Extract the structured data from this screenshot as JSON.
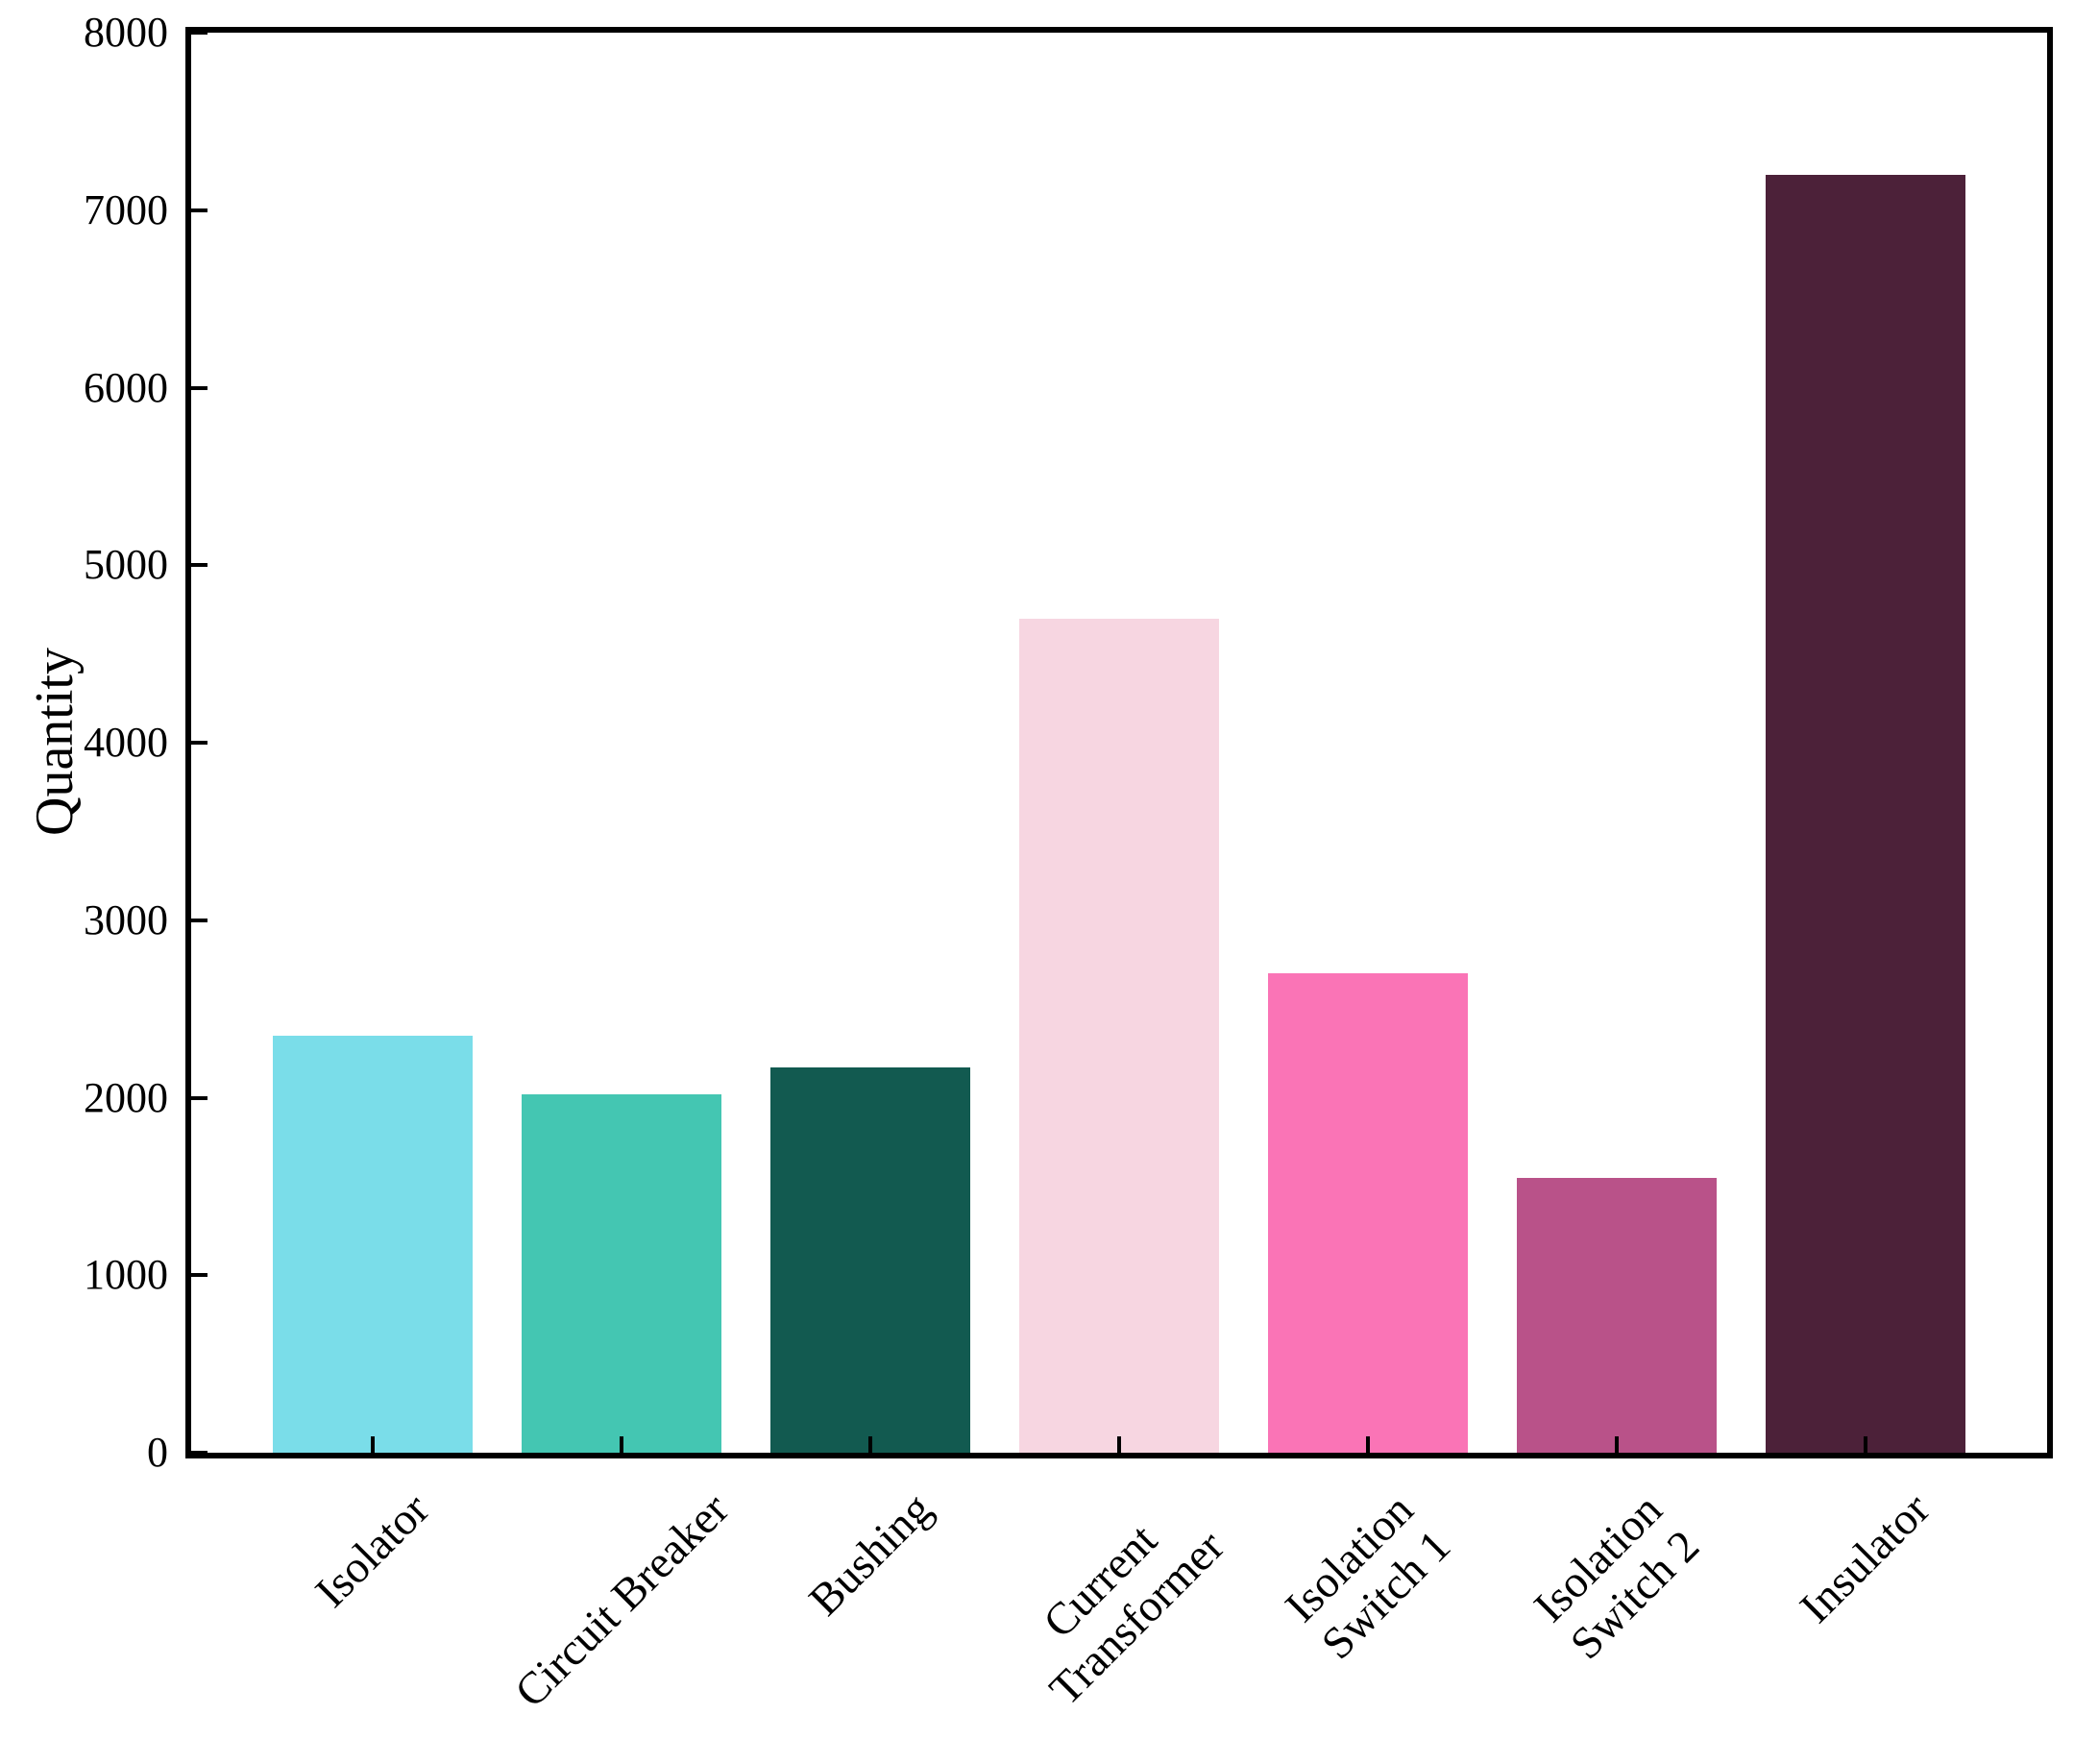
{
  "chart_data": {
    "type": "bar",
    "title": "",
    "xlabel": "",
    "ylabel": "Quantity",
    "categories": [
      "Isolator",
      "Circuit Breaker",
      "Bushing",
      "Current\nTransformer",
      "Isolation\nSwitch 1",
      "Isolation\nSwitch 2",
      "Insulator"
    ],
    "values": [
      2350,
      2020,
      2170,
      4700,
      2700,
      1550,
      7200
    ],
    "bar_colors": [
      "#7ADDE9",
      "#44C6B2",
      "#125A50",
      "#F7D6E1",
      "#FA74B6",
      "#B95289",
      "#4C2139"
    ],
    "ylim": [
      0,
      8000
    ],
    "yticks": [
      0,
      1000,
      2000,
      3000,
      4000,
      5000,
      6000,
      7000,
      8000
    ],
    "grid": false,
    "legend": null,
    "x_tick_rotation_deg": 45,
    "tick_direction": "in",
    "bar_width_fraction": 0.8,
    "axis_color": "#000000",
    "background_color": "#FFFFFF"
  }
}
